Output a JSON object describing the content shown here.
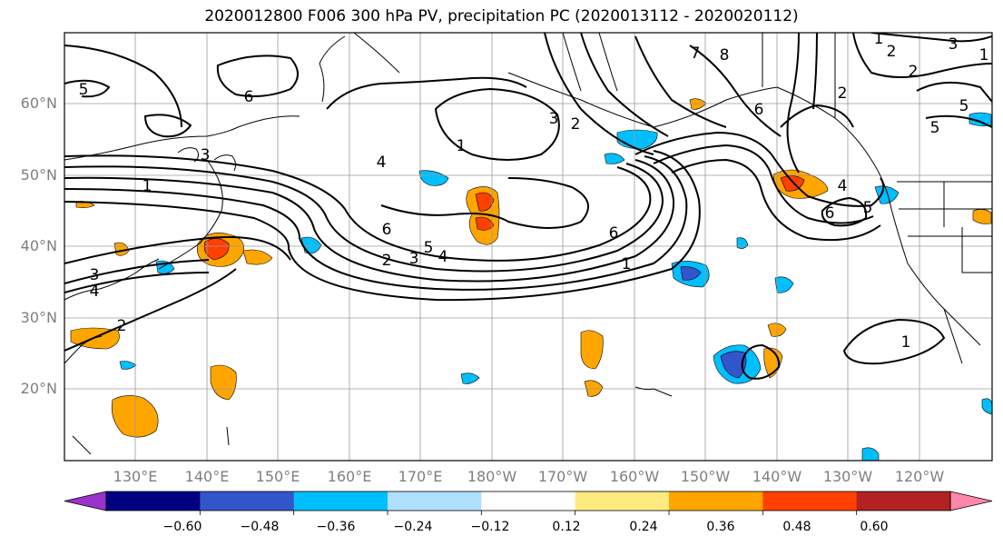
{
  "title": "2020012800 F006 300 hPa PV, precipitation PC (2020013112 - 2020020112)",
  "lat_labels": [
    "60°N",
    "50°N",
    "40°N",
    "30°N",
    "20°N"
  ],
  "lon_labels": [
    "130°E",
    "140°E",
    "150°E",
    "160°E",
    "170°E",
    "180°W",
    "170°W",
    "160°W",
    "150°W",
    "140°W",
    "130°W",
    "120°W"
  ],
  "contour_labels": [
    "5",
    "6",
    "7",
    "8",
    "1",
    "2",
    "2",
    "5",
    "3",
    "2",
    "6",
    "5",
    "1",
    "4",
    "3",
    "6",
    "5",
    "2",
    "3",
    "4",
    "6",
    "1",
    "4",
    "6",
    "5",
    "3",
    "4",
    "3",
    "2",
    "1",
    "1",
    "1",
    "2"
  ],
  "colorbar": {
    "ticks": [
      "−0.60",
      "−0.48",
      "−0.36",
      "−0.24",
      "−0.12",
      "0.12",
      "0.24",
      "0.36",
      "0.48",
      "0.60"
    ],
    "colors": [
      "#9933cc",
      "#000080",
      "#3355cc",
      "#00bfff",
      "#b0e0ff",
      "#ffffff",
      "#ffea80",
      "#ffa500",
      "#ff4000",
      "#b22222",
      "#ff88aa"
    ]
  }
}
